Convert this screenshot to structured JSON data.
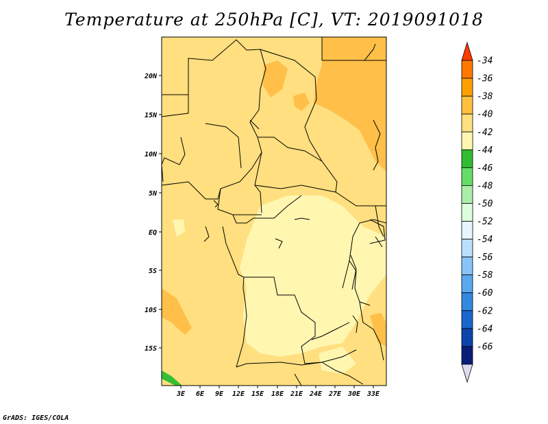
{
  "title": "Temperature at 250hPa [C], VT: 2019091018",
  "credit": "GrADS: IGES/COLA",
  "map": {
    "lat_labels": [
      "20N",
      "15N",
      "10N",
      "5N",
      "EQ",
      "5S",
      "10S",
      "15S"
    ],
    "lon_labels": [
      "3E",
      "6E",
      "9E",
      "12E",
      "15E",
      "18E",
      "21E",
      "24E",
      "27E",
      "30E",
      "33E"
    ]
  },
  "colorbar": {
    "labels": [
      "-34",
      "-36",
      "-38",
      "-40",
      "-42",
      "-44",
      "-46",
      "-48",
      "-50",
      "-52",
      "-54",
      "-56",
      "-58",
      "-60",
      "-62",
      "-64",
      "-66"
    ],
    "colors": [
      "#ff3c00",
      "#ff7800",
      "#ffa000",
      "#ffc040",
      "#ffe080",
      "#fff7b0",
      "#33bb33",
      "#66dd66",
      "#aaeeaa",
      "#ddffdd",
      "#e6f6ff",
      "#bbe0ff",
      "#88c4f8",
      "#5aa8f0",
      "#3388e0",
      "#1a66cc",
      "#0c44aa",
      "#0a1e78",
      "#dcdcf0"
    ]
  },
  "legend_colors": {
    "minus38": "#ffbf48",
    "minus40": "#ffdf7f",
    "minus42": "#fff6b0",
    "minus44": "#35bf35"
  }
}
